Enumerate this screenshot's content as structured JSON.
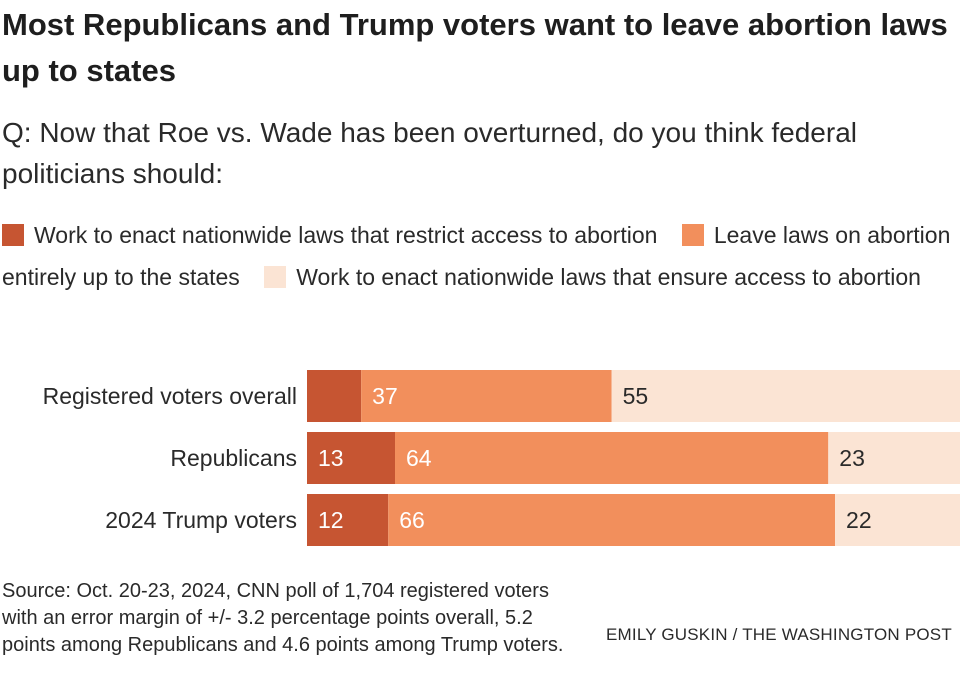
{
  "header": {
    "title": "Most Republicans and Trump voters want to leave abortion laws up to states",
    "subtitle": "Q: Now that Roe vs. Wade has been overturned, do you think federal politicians should:"
  },
  "legend": [
    {
      "label": "Work to enact nationwide laws that restrict access to abortion",
      "color": "#c65532"
    },
    {
      "label": "Leave laws on abortion entirely up to the states",
      "color": "#f28f5c"
    },
    {
      "label": "Work to enact nationwide laws that ensure access to abortion",
      "color": "#fbe4d4"
    }
  ],
  "chart_data": {
    "type": "bar",
    "orientation": "horizontal",
    "stacked": true,
    "categories": [
      "Registered voters overall",
      "Republicans",
      "2024 Trump voters"
    ],
    "series": [
      {
        "name": "Work to enact nationwide laws that restrict access to abortion",
        "color": "#c65532",
        "values": [
          8,
          13,
          12
        ],
        "labels": [
          "",
          "13",
          "12"
        ]
      },
      {
        "name": "Leave laws on abortion entirely up to the states",
        "color": "#f28f5c",
        "values": [
          37,
          64,
          66
        ],
        "labels": [
          "37",
          "64",
          "66"
        ]
      },
      {
        "name": "Work to enact nationwide laws that ensure access to abortion",
        "color": "#fbe4d4",
        "values": [
          55,
          23,
          22
        ],
        "labels": [
          "55",
          "23",
          "22"
        ]
      }
    ],
    "xlim": [
      0,
      100
    ],
    "grid": false,
    "legend_position": "top"
  },
  "footer": {
    "source": "Source: Oct. 20-23, 2024, CNN poll of 1,704 registered voters with an error margin of +/- 3.2 percentage points overall, 5.2 points among Republicans and 4.6 points among Trump voters.",
    "credit": "EMILY GUSKIN / THE WASHINGTON POST"
  }
}
